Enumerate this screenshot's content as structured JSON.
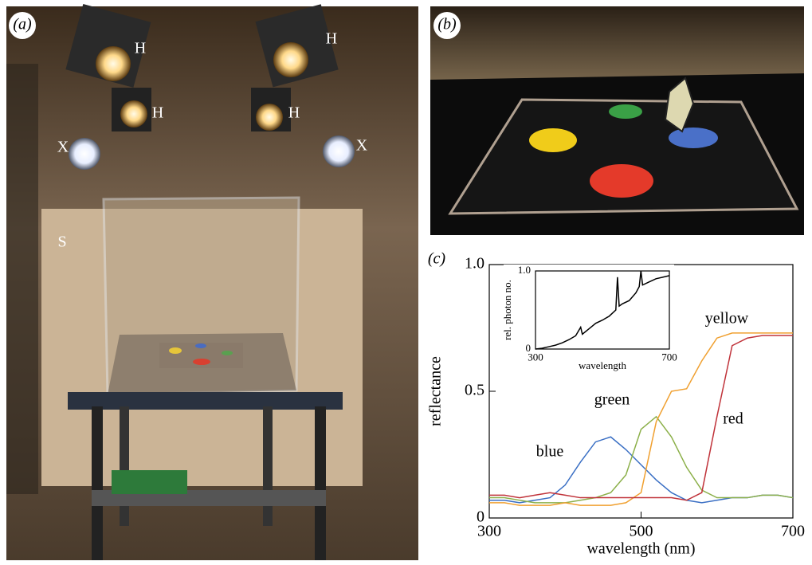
{
  "panels": {
    "a": "(a)",
    "b": "(b)",
    "c": "(c)"
  },
  "photo_a": {
    "labels": [
      "H",
      "H",
      "H",
      "H",
      "X",
      "X",
      "S"
    ]
  },
  "chart_data": [
    {
      "type": "line",
      "xlabel": "wavelength (nm)",
      "ylabel": "reflectance",
      "x": [
        300,
        320,
        340,
        360,
        380,
        400,
        420,
        440,
        460,
        480,
        500,
        520,
        540,
        560,
        580,
        600,
        620,
        640,
        660,
        680,
        700
      ],
      "xlim": [
        300,
        700
      ],
      "xticks": [
        300,
        500,
        700
      ],
      "ylim": [
        0,
        1
      ],
      "yticks": [
        0,
        0.5,
        {
          "value": 1,
          "label": "1.0"
        }
      ],
      "series": [
        {
          "name": "blue",
          "color": "#3a6fc4",
          "values": [
            0.07,
            0.07,
            0.06,
            0.07,
            0.08,
            0.13,
            0.22,
            0.3,
            0.32,
            0.27,
            0.21,
            0.15,
            0.1,
            0.07,
            0.06,
            0.07,
            0.08,
            0.08,
            0.09,
            0.09,
            0.08
          ]
        },
        {
          "name": "green",
          "color": "#8cb04a",
          "values": [
            0.08,
            0.08,
            0.07,
            0.06,
            0.06,
            0.06,
            0.07,
            0.08,
            0.1,
            0.17,
            0.35,
            0.4,
            0.32,
            0.2,
            0.11,
            0.08,
            0.08,
            0.08,
            0.09,
            0.09,
            0.08
          ]
        },
        {
          "name": "yellow",
          "color": "#f0a030",
          "values": [
            0.06,
            0.06,
            0.05,
            0.05,
            0.05,
            0.06,
            0.05,
            0.05,
            0.05,
            0.06,
            0.1,
            0.38,
            0.5,
            0.51,
            0.62,
            0.71,
            0.73,
            0.73,
            0.73,
            0.73,
            0.73
          ]
        },
        {
          "name": "red",
          "color": "#c0333a",
          "values": [
            0.09,
            0.09,
            0.08,
            0.09,
            0.1,
            0.09,
            0.08,
            0.08,
            0.08,
            0.08,
            0.08,
            0.08,
            0.08,
            0.07,
            0.1,
            0.4,
            0.68,
            0.71,
            0.72,
            0.72,
            0.72
          ]
        }
      ]
    },
    {
      "type": "line",
      "xlabel": "wavelength",
      "ylabel": "rel. photon no.",
      "x": [
        300,
        320,
        340,
        360,
        380,
        400,
        420,
        435,
        440,
        460,
        480,
        500,
        520,
        540,
        545,
        550,
        560,
        580,
        600,
        610,
        615,
        620,
        640,
        660,
        680,
        700
      ],
      "xlim": [
        300,
        700
      ],
      "xticks": [
        300,
        700
      ],
      "ylim": [
        0,
        1
      ],
      "yticks": [
        0,
        {
          "value": 1,
          "label": "1.0"
        }
      ],
      "series": [
        {
          "color": "#000000",
          "values": [
            0,
            0.01,
            0.03,
            0.05,
            0.08,
            0.12,
            0.17,
            0.28,
            0.19,
            0.26,
            0.33,
            0.37,
            0.42,
            0.5,
            0.92,
            0.55,
            0.58,
            0.62,
            0.72,
            0.8,
            1.0,
            0.82,
            0.86,
            0.9,
            0.92,
            0.94
          ]
        }
      ]
    }
  ]
}
